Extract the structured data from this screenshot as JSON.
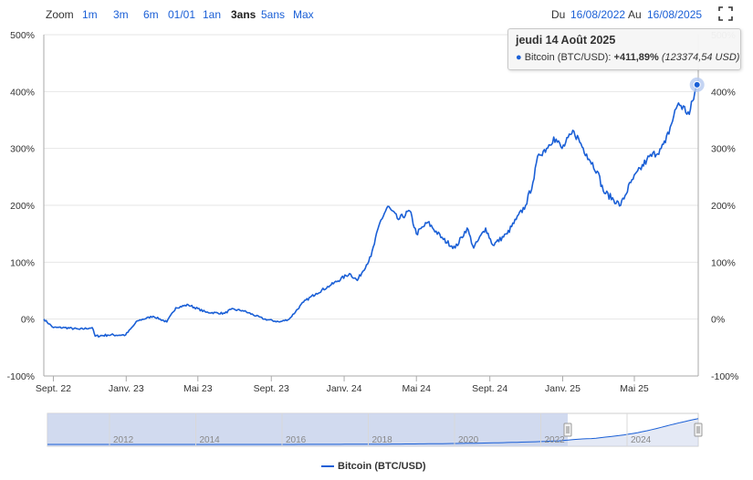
{
  "toolbar": {
    "zoom_label": "Zoom",
    "zoom_buttons": [
      "1m",
      "3m",
      "6m",
      "01/01",
      "1an",
      "3ans",
      "5ans",
      "Max"
    ],
    "active_zoom": "3ans",
    "from_label": "Du",
    "from_date": "16/08/2022",
    "to_label": "Au",
    "to_date": "16/08/2025"
  },
  "tooltip": {
    "date": "jeudi 14 Août 2025",
    "series": "Bitcoin (BTC/USD):",
    "change": "+411,89%",
    "price": "(123374,54 USD)"
  },
  "legend": {
    "label": "Bitcoin (BTC/USD)"
  },
  "colors": {
    "line": "#1a5fd6",
    "navigator_fill": "#c9d4ec",
    "grid": "#e6e6e6"
  },
  "navigator": {
    "year_labels": [
      "2012",
      "2014",
      "2016",
      "2018",
      "2020",
      "2022",
      "2024"
    ]
  },
  "chart_data": {
    "type": "line",
    "title": "",
    "xlabel": "",
    "ylabel": "",
    "ylim": [
      -100,
      500
    ],
    "y_ticks": [
      "-100%",
      "0%",
      "100%",
      "200%",
      "300%",
      "400%",
      "500%"
    ],
    "x_ticks": [
      "Sept. 22",
      "Janv. 23",
      "Mai 23",
      "Sept. 23",
      "Janv. 24",
      "Mai 24",
      "Sept. 24",
      "Janv. 25",
      "Mai 25"
    ],
    "x_tick_dates": [
      "2022-09-01",
      "2023-01-01",
      "2023-05-01",
      "2023-09-01",
      "2024-01-01",
      "2024-05-01",
      "2024-09-01",
      "2025-01-01",
      "2025-05-01"
    ],
    "x_range": [
      "2022-08-16",
      "2025-08-16"
    ],
    "series": [
      {
        "name": "Bitcoin (BTC/USD)",
        "x": [
          "2022-08-16",
          "2022-09-01",
          "2022-09-20",
          "2022-10-15",
          "2022-11-05",
          "2022-11-10",
          "2022-12-01",
          "2022-12-31",
          "2023-01-20",
          "2023-02-15",
          "2023-03-10",
          "2023-03-25",
          "2023-04-15",
          "2023-05-15",
          "2023-06-15",
          "2023-06-25",
          "2023-07-15",
          "2023-08-20",
          "2023-09-15",
          "2023-10-01",
          "2023-10-25",
          "2023-11-15",
          "2023-12-10",
          "2024-01-10",
          "2024-01-23",
          "2024-02-15",
          "2024-03-01",
          "2024-03-14",
          "2024-04-01",
          "2024-04-20",
          "2024-05-01",
          "2024-05-20",
          "2024-06-15",
          "2024-07-05",
          "2024-07-25",
          "2024-08-05",
          "2024-08-25",
          "2024-09-06",
          "2024-09-30",
          "2024-10-15",
          "2024-10-31",
          "2024-11-12",
          "2024-11-22",
          "2024-12-05",
          "2024-12-17",
          "2024-12-31",
          "2025-01-20",
          "2025-02-10",
          "2025-02-28",
          "2025-03-10",
          "2025-04-08",
          "2025-04-25",
          "2025-05-22",
          "2025-06-15",
          "2025-06-22",
          "2025-07-10",
          "2025-07-14",
          "2025-08-01",
          "2025-08-14"
        ],
        "values": [
          0,
          -15,
          -15,
          -18,
          -15,
          -30,
          -28,
          -28,
          -3,
          5,
          -5,
          20,
          25,
          12,
          10,
          17,
          15,
          0,
          -5,
          0,
          30,
          45,
          60,
          80,
          68,
          110,
          170,
          198,
          175,
          190,
          150,
          170,
          140,
          125,
          160,
          125,
          160,
          130,
          150,
          175,
          200,
          240,
          290,
          300,
          320,
          300,
          330,
          290,
          260,
          225,
          200,
          240,
          280,
          300,
          310,
          370,
          380,
          360,
          412
        ]
      }
    ]
  }
}
